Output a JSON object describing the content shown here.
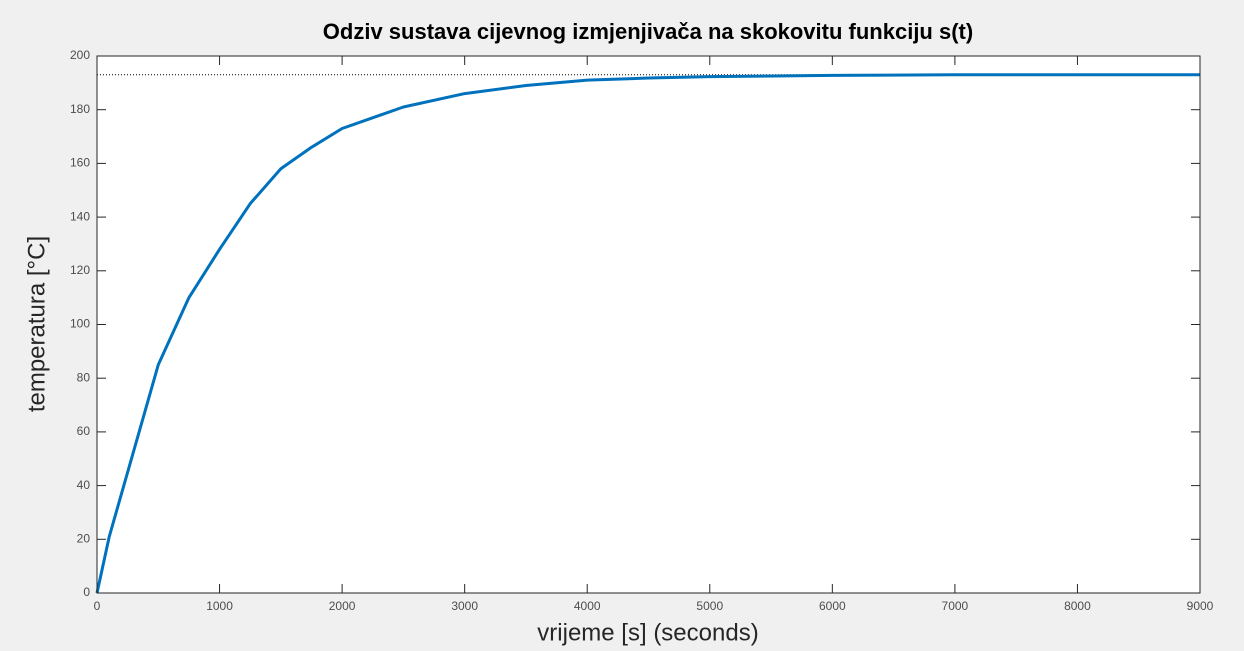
{
  "chart_data": {
    "type": "line",
    "title": "Odziv sustava cijevnog izmjenjivača na skokovitu funkciju s(t)",
    "xlabel": "vrijeme [s] (seconds)",
    "ylabel": "temperatura [°C]",
    "x": [
      0,
      100,
      250,
      500,
      750,
      1000,
      1250,
      1500,
      1750,
      2000,
      2500,
      3000,
      3500,
      4000,
      4500,
      5000,
      6000,
      7000,
      8000,
      9000
    ],
    "series": [
      {
        "color": "#0072bd",
        "values": [
          0,
          21,
          45,
          85,
          110,
          128,
          145,
          158,
          166,
          173,
          181,
          186,
          189,
          191,
          191.8,
          192.3,
          192.8,
          193,
          193,
          193
        ]
      }
    ],
    "reference_line": {
      "y": 193,
      "style": "dotted",
      "color": "#000000"
    },
    "xlim": [
      0,
      9000
    ],
    "ylim": [
      0,
      200
    ],
    "xticks": [
      0,
      1000,
      2000,
      3000,
      4000,
      5000,
      6000,
      7000,
      8000,
      9000
    ],
    "yticks": [
      0,
      20,
      40,
      60,
      80,
      100,
      120,
      140,
      160,
      180,
      200
    ],
    "grid": false
  }
}
